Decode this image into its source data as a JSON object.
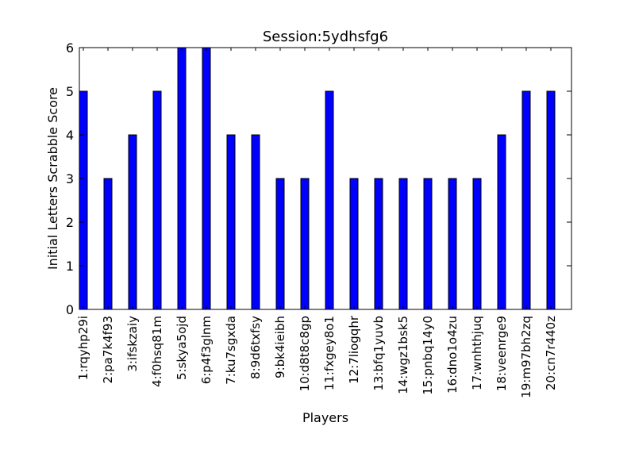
{
  "chart_data": {
    "type": "bar",
    "title": "Session:5ydhsfg6",
    "xlabel": "Players",
    "ylabel": "Initial Letters Scrabble Score",
    "ylim": [
      0,
      6
    ],
    "yticks": [
      0,
      1,
      2,
      3,
      4,
      5,
      6
    ],
    "grid": false,
    "categories": [
      "1:rqyhp29i",
      "2:pa7k4f93",
      "3:ifskzaiy",
      "4:f0hsq81m",
      "5:skya5ojd",
      "6:p4f3glnm",
      "7:ku7sgxda",
      "8:9d6txfsy",
      "9:bk4ieibh",
      "10:d8t8c8gp",
      "11:fxgey8o1",
      "12:7liogqhr",
      "13:bfq1yuvb",
      "14:wgz1bsk5",
      "15:pnbq14y0",
      "16:dno1o4zu",
      "17:wnhthjuq",
      "18:veenrge9",
      "19:m97bh2zq",
      "20:cn7r440z"
    ],
    "values": [
      5,
      3,
      4,
      5,
      6,
      6,
      4,
      4,
      3,
      3,
      5,
      3,
      3,
      3,
      3,
      3,
      3,
      4,
      5,
      5
    ],
    "bar_color": "#0000ff"
  }
}
